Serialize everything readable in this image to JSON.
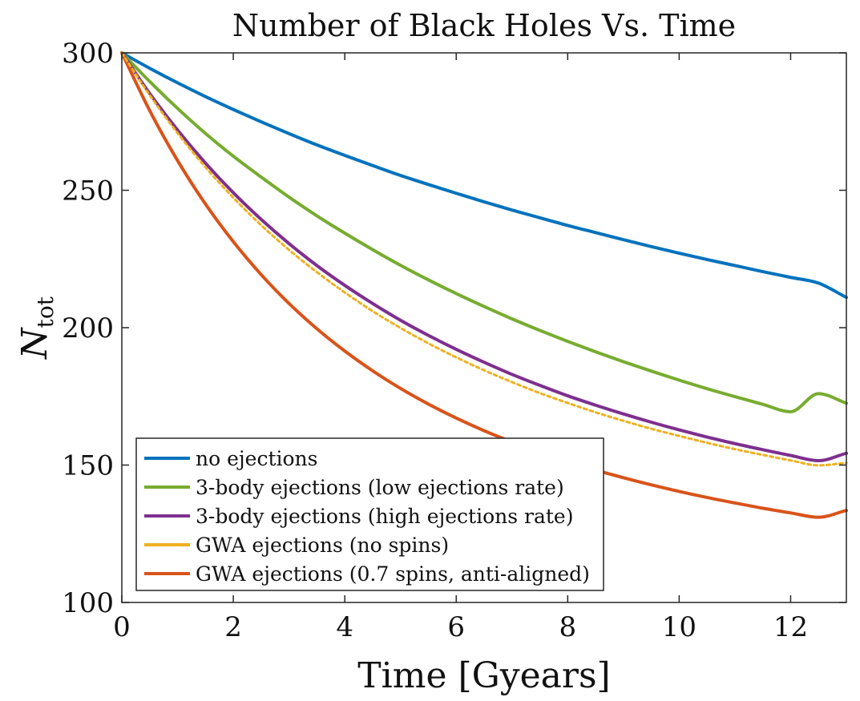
{
  "chart_data": {
    "type": "line",
    "title": "Number of Black Holes Vs. Time",
    "xlabel": "Time [Gyears]",
    "ylabel_main": "N",
    "ylabel_sub": "tot",
    "xlim": [
      0,
      13
    ],
    "ylim": [
      100,
      300
    ],
    "xticks": [
      0,
      2,
      4,
      6,
      8,
      10,
      12
    ],
    "yticks": [
      100,
      150,
      200,
      250,
      300
    ],
    "grid": false,
    "legend_position": "bottom-left",
    "x": [
      0,
      0.5,
      1,
      1.5,
      2,
      2.5,
      3,
      3.5,
      4,
      4.5,
      5,
      5.5,
      6,
      6.5,
      7,
      7.5,
      8,
      8.5,
      9,
      9.5,
      10,
      10.5,
      11,
      11.5,
      12,
      12.5,
      13
    ],
    "series": [
      {
        "name": "no ejections",
        "color": "#0072BD",
        "dash": "",
        "values": [
          300,
          294.4,
          289.1,
          284.1,
          279.4,
          274.9,
          270.6,
          266.5,
          262.7,
          259.0,
          255.4,
          252.1,
          248.9,
          245.8,
          242.8,
          240.0,
          237.2,
          234.6,
          232.0,
          229.5,
          227.1,
          224.8,
          222.6,
          220.4,
          218.3,
          216.2,
          211.0
        ]
      },
      {
        "name": "3-body ejections (low ejections rate)",
        "color": "#77AC30",
        "dash": "",
        "values": [
          300,
          289.6,
          279.8,
          270.7,
          262.4,
          254.8,
          247.5,
          240.7,
          234.4,
          228.4,
          222.7,
          217.4,
          212.4,
          207.7,
          203.2,
          199.0,
          195.0,
          191.2,
          187.6,
          184.2,
          180.9,
          177.8,
          174.9,
          172.1,
          169.4,
          176.0,
          172.5
        ]
      },
      {
        "name": "3-body ejections (high ejections rate)",
        "color": "#7E2F8E",
        "dash": "",
        "values": [
          300,
          285.2,
          271.9,
          259.9,
          249.1,
          239.4,
          230.6,
          222.6,
          215.4,
          208.8,
          202.7,
          197.2,
          192.1,
          187.4,
          183.0,
          179.0,
          175.2,
          171.8,
          168.6,
          165.6,
          162.8,
          160.2,
          157.8,
          155.6,
          153.5,
          151.6,
          154.3
        ]
      },
      {
        "name": "GWA ejections (no spins)",
        "color": "#EDB120",
        "dash": "4 4",
        "values": [
          300,
          284.6,
          270.8,
          258.4,
          247.3,
          237.3,
          228.3,
          220.2,
          212.8,
          206.0,
          199.9,
          194.3,
          189.2,
          184.5,
          180.2,
          176.2,
          172.6,
          169.2,
          166.1,
          163.2,
          160.6,
          158.1,
          155.8,
          153.7,
          151.7,
          149.9,
          150.8
        ]
      },
      {
        "name": "GWA ejections (0.7 spins, anti-aligned)",
        "color": "#D95319",
        "dash": "",
        "values": [
          300,
          279.0,
          260.8,
          245.0,
          231.3,
          219.3,
          208.8,
          199.6,
          191.5,
          184.3,
          177.9,
          172.2,
          167.1,
          162.5,
          158.4,
          154.7,
          151.3,
          148.2,
          145.4,
          142.8,
          140.4,
          138.2,
          136.2,
          134.3,
          132.6,
          131.0,
          133.5
        ]
      }
    ]
  }
}
